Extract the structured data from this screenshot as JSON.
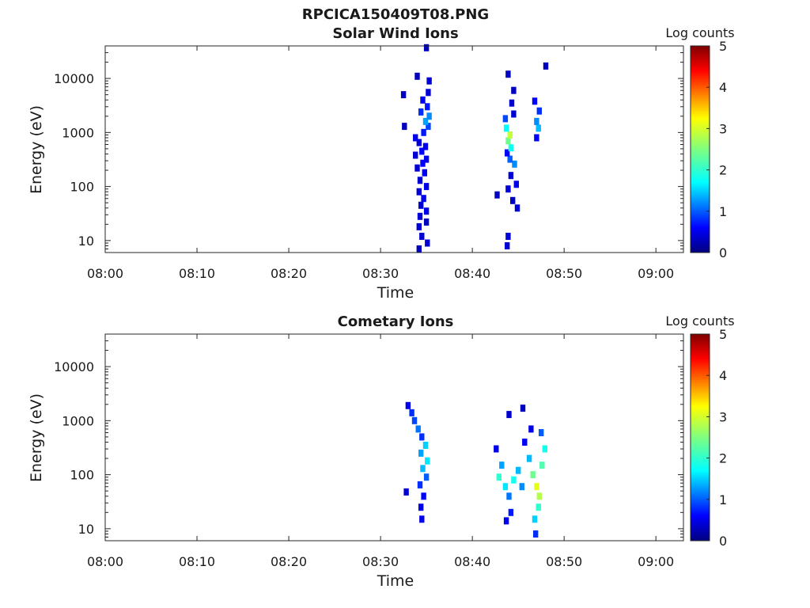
{
  "figure_title": "RPCICA150409T08.PNG",
  "chart_data": [
    {
      "type": "heatmap",
      "title": "Solar Wind Ions",
      "xlabel": "Time",
      "ylabel": "Energy (eV)",
      "x_ticks": [
        "08:00",
        "08:10",
        "08:20",
        "08:30",
        "08:40",
        "08:50",
        "09:00"
      ],
      "x_range": [
        "08:00",
        "09:03"
      ],
      "y_scale": "log",
      "y_ticks": [
        "10",
        "100",
        "1000",
        "10000"
      ],
      "y_range": [
        6,
        40000
      ],
      "colorbar": {
        "label": "Log counts",
        "ticks": [
          "0",
          "1",
          "2",
          "3",
          "4",
          "5"
        ],
        "range": [
          0,
          5
        ]
      },
      "pixels": [
        {
          "t": 34.2,
          "e": 7,
          "v": 0.3
        },
        {
          "t": 35.1,
          "e": 9,
          "v": 0.4
        },
        {
          "t": 34.5,
          "e": 12,
          "v": 0.4
        },
        {
          "t": 34.2,
          "e": 18,
          "v": 0.4
        },
        {
          "t": 35.0,
          "e": 22,
          "v": 0.3
        },
        {
          "t": 34.3,
          "e": 28,
          "v": 0.4
        },
        {
          "t": 35.0,
          "e": 35,
          "v": 0.5
        },
        {
          "t": 34.4,
          "e": 45,
          "v": 0.4
        },
        {
          "t": 34.7,
          "e": 60,
          "v": 0.5
        },
        {
          "t": 34.2,
          "e": 80,
          "v": 0.4
        },
        {
          "t": 35.0,
          "e": 100,
          "v": 0.5
        },
        {
          "t": 34.3,
          "e": 130,
          "v": 0.4
        },
        {
          "t": 34.8,
          "e": 180,
          "v": 0.5
        },
        {
          "t": 34.0,
          "e": 220,
          "v": 0.4
        },
        {
          "t": 34.6,
          "e": 270,
          "v": 0.6
        },
        {
          "t": 35.0,
          "e": 320,
          "v": 0.5
        },
        {
          "t": 33.8,
          "e": 380,
          "v": 0.4
        },
        {
          "t": 34.5,
          "e": 450,
          "v": 0.6
        },
        {
          "t": 34.9,
          "e": 550,
          "v": 0.5
        },
        {
          "t": 34.2,
          "e": 650,
          "v": 0.4
        },
        {
          "t": 33.8,
          "e": 800,
          "v": 0.5
        },
        {
          "t": 34.7,
          "e": 1000,
          "v": 0.7
        },
        {
          "t": 35.2,
          "e": 1300,
          "v": 0.9
        },
        {
          "t": 34.9,
          "e": 1600,
          "v": 1.3
        },
        {
          "t": 35.3,
          "e": 2000,
          "v": 1.2
        },
        {
          "t": 34.4,
          "e": 2400,
          "v": 0.8
        },
        {
          "t": 35.1,
          "e": 3000,
          "v": 0.7
        },
        {
          "t": 34.6,
          "e": 4000,
          "v": 0.5
        },
        {
          "t": 35.2,
          "e": 5500,
          "v": 0.4
        },
        {
          "t": 35.3,
          "e": 9000,
          "v": 0.4
        },
        {
          "t": 34.0,
          "e": 11000,
          "v": 0.3
        },
        {
          "t": 32.5,
          "e": 5000,
          "v": 0.3
        },
        {
          "t": 32.6,
          "e": 1300,
          "v": 0.3
        },
        {
          "t": 35.0,
          "e": 37000,
          "v": 0.3
        },
        {
          "t": 43.8,
          "e": 8,
          "v": 0.4
        },
        {
          "t": 43.9,
          "e": 12,
          "v": 0.4
        },
        {
          "t": 44.9,
          "e": 40,
          "v": 0.4
        },
        {
          "t": 44.4,
          "e": 55,
          "v": 0.3
        },
        {
          "t": 42.7,
          "e": 70,
          "v": 0.3
        },
        {
          "t": 43.9,
          "e": 90,
          "v": 0.4
        },
        {
          "t": 44.8,
          "e": 110,
          "v": 0.5
        },
        {
          "t": 44.2,
          "e": 160,
          "v": 0.4
        },
        {
          "t": 44.6,
          "e": 260,
          "v": 1.2
        },
        {
          "t": 44.1,
          "e": 320,
          "v": 1.0
        },
        {
          "t": 43.8,
          "e": 420,
          "v": 0.6
        },
        {
          "t": 44.2,
          "e": 520,
          "v": 1.8
        },
        {
          "t": 43.9,
          "e": 700,
          "v": 2.4
        },
        {
          "t": 44.1,
          "e": 900,
          "v": 2.9
        },
        {
          "t": 43.7,
          "e": 1200,
          "v": 1.7
        },
        {
          "t": 43.6,
          "e": 1800,
          "v": 0.9
        },
        {
          "t": 44.5,
          "e": 2200,
          "v": 0.4
        },
        {
          "t": 44.3,
          "e": 3500,
          "v": 0.4
        },
        {
          "t": 44.5,
          "e": 6000,
          "v": 0.3
        },
        {
          "t": 43.9,
          "e": 12000,
          "v": 0.3
        },
        {
          "t": 47.0,
          "e": 800,
          "v": 0.6
        },
        {
          "t": 47.2,
          "e": 1200,
          "v": 1.4
        },
        {
          "t": 47.0,
          "e": 1600,
          "v": 1.2
        },
        {
          "t": 47.3,
          "e": 2500,
          "v": 0.8
        },
        {
          "t": 46.8,
          "e": 3800,
          "v": 0.6
        },
        {
          "t": 48.0,
          "e": 17000,
          "v": 0.3
        }
      ]
    },
    {
      "type": "heatmap",
      "title": "Cometary Ions",
      "xlabel": "Time",
      "ylabel": "Energy (eV)",
      "x_ticks": [
        "08:00",
        "08:10",
        "08:20",
        "08:30",
        "08:40",
        "08:50",
        "09:00"
      ],
      "x_range": [
        "08:00",
        "09:03"
      ],
      "y_scale": "log",
      "y_ticks": [
        "10",
        "100",
        "1000",
        "10000"
      ],
      "y_range": [
        6,
        40000
      ],
      "colorbar": {
        "label": "Log counts",
        "ticks": [
          "0",
          "1",
          "2",
          "3",
          "4",
          "5"
        ],
        "range": [
          0,
          5
        ]
      },
      "pixels": [
        {
          "t": 33.0,
          "e": 1900,
          "v": 0.5
        },
        {
          "t": 33.4,
          "e": 1400,
          "v": 0.8
        },
        {
          "t": 33.7,
          "e": 1000,
          "v": 0.9
        },
        {
          "t": 34.1,
          "e": 700,
          "v": 1.1
        },
        {
          "t": 34.5,
          "e": 500,
          "v": 0.8
        },
        {
          "t": 34.9,
          "e": 350,
          "v": 1.5
        },
        {
          "t": 34.4,
          "e": 250,
          "v": 1.3
        },
        {
          "t": 35.1,
          "e": 180,
          "v": 1.6
        },
        {
          "t": 34.6,
          "e": 130,
          "v": 1.4
        },
        {
          "t": 35.0,
          "e": 90,
          "v": 1.0
        },
        {
          "t": 34.3,
          "e": 65,
          "v": 0.8
        },
        {
          "t": 34.7,
          "e": 40,
          "v": 0.6
        },
        {
          "t": 34.4,
          "e": 25,
          "v": 0.5
        },
        {
          "t": 34.5,
          "e": 15,
          "v": 0.5
        },
        {
          "t": 32.8,
          "e": 48,
          "v": 0.4
        },
        {
          "t": 42.6,
          "e": 300,
          "v": 0.5
        },
        {
          "t": 43.2,
          "e": 150,
          "v": 1.3
        },
        {
          "t": 42.9,
          "e": 90,
          "v": 2.0
        },
        {
          "t": 43.6,
          "e": 60,
          "v": 1.6
        },
        {
          "t": 44.0,
          "e": 40,
          "v": 1.1
        },
        {
          "t": 44.5,
          "e": 80,
          "v": 1.8
        },
        {
          "t": 45.0,
          "e": 120,
          "v": 1.4
        },
        {
          "t": 45.4,
          "e": 60,
          "v": 1.2
        },
        {
          "t": 44.2,
          "e": 20,
          "v": 0.7
        },
        {
          "t": 43.7,
          "e": 14,
          "v": 0.5
        },
        {
          "t": 45.7,
          "e": 400,
          "v": 0.6
        },
        {
          "t": 46.2,
          "e": 200,
          "v": 1.4
        },
        {
          "t": 46.6,
          "e": 100,
          "v": 2.4
        },
        {
          "t": 47.0,
          "e": 60,
          "v": 3.1
        },
        {
          "t": 47.3,
          "e": 40,
          "v": 2.8
        },
        {
          "t": 47.6,
          "e": 150,
          "v": 2.2
        },
        {
          "t": 47.9,
          "e": 300,
          "v": 1.8
        },
        {
          "t": 47.2,
          "e": 25,
          "v": 2.0
        },
        {
          "t": 46.8,
          "e": 15,
          "v": 1.5
        },
        {
          "t": 46.9,
          "e": 8,
          "v": 0.8
        },
        {
          "t": 47.5,
          "e": 600,
          "v": 1.0
        },
        {
          "t": 46.4,
          "e": 700,
          "v": 0.5
        },
        {
          "t": 44.0,
          "e": 1300,
          "v": 0.4
        },
        {
          "t": 45.5,
          "e": 1700,
          "v": 0.3
        }
      ]
    }
  ]
}
